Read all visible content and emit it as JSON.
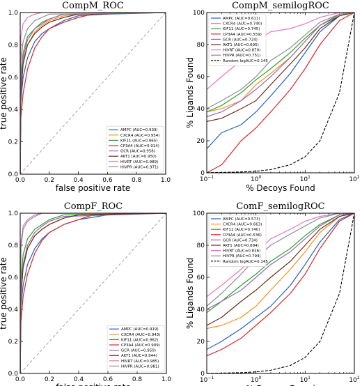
{
  "figure": {
    "colors": {
      "AMPC": "#1f5fbf",
      "CXCR4": "#ff8c1a",
      "KIF11": "#2ca02c",
      "CP3A4": "#d62728",
      "GCR": "#9467bd",
      "AKT1": "#6b2b12",
      "HIVRT": "#e377c2",
      "HIVPR": "#8c8c8c",
      "random": "#000000",
      "diag": "#999999"
    }
  },
  "chart_data": [
    {
      "id": "compm_roc",
      "type": "line",
      "title": "CompM_ROC",
      "xlabel": "false positive rate",
      "ylabel": "true positive rate",
      "xlim": [
        0,
        1
      ],
      "ylim": [
        0,
        1
      ],
      "xticks": [
        "0.0",
        "0.2",
        "0.4",
        "0.6",
        "0.8",
        "1.0"
      ],
      "yticks": [
        "0.0",
        "0.2",
        "0.4",
        "0.6",
        "0.8",
        "1.0"
      ],
      "legend_position": "lower-right",
      "diagonal": true,
      "series": [
        {
          "name": "AMPC (AUC=0.939)",
          "key": "AMPC",
          "x": [
            0,
            0.005,
            0.02,
            0.05,
            0.1,
            0.15,
            0.2,
            0.3,
            0.4,
            0.6,
            1
          ],
          "y": [
            0,
            0.45,
            0.6,
            0.72,
            0.82,
            0.87,
            0.9,
            0.95,
            0.98,
            0.99,
            1
          ]
        },
        {
          "name": "CXCR4 (AUC=0.954)",
          "key": "CXCR4",
          "x": [
            0,
            0.005,
            0.02,
            0.05,
            0.1,
            0.15,
            0.2,
            0.3,
            0.4,
            1
          ],
          "y": [
            0,
            0.55,
            0.7,
            0.8,
            0.88,
            0.92,
            0.95,
            0.98,
            0.99,
            1
          ]
        },
        {
          "name": "KIF11 (AUC=0.965)",
          "key": "KIF11",
          "x": [
            0,
            0.005,
            0.02,
            0.05,
            0.1,
            0.15,
            0.2,
            0.3,
            1
          ],
          "y": [
            0,
            0.6,
            0.75,
            0.85,
            0.9,
            0.94,
            0.96,
            0.99,
            1
          ]
        },
        {
          "name": "CP3A4 (AUC=0.914)",
          "key": "CP3A4",
          "x": [
            0,
            0.005,
            0.02,
            0.05,
            0.1,
            0.15,
            0.2,
            0.3,
            0.4,
            0.5,
            1
          ],
          "y": [
            0,
            0.35,
            0.5,
            0.65,
            0.78,
            0.85,
            0.9,
            0.94,
            0.97,
            0.99,
            1
          ]
        },
        {
          "name": "GCR (AUC=0.958)",
          "key": "GCR",
          "x": [
            0,
            0.005,
            0.02,
            0.05,
            0.1,
            0.15,
            0.2,
            0.3,
            1
          ],
          "y": [
            0,
            0.55,
            0.72,
            0.83,
            0.9,
            0.93,
            0.96,
            0.99,
            1
          ]
        },
        {
          "name": "AKT1 (AUC=0.950)",
          "key": "AKT1",
          "x": [
            0,
            0.005,
            0.02,
            0.05,
            0.1,
            0.15,
            0.2,
            0.3,
            0.4,
            1
          ],
          "y": [
            0,
            0.5,
            0.68,
            0.8,
            0.87,
            0.91,
            0.94,
            0.97,
            0.99,
            1
          ]
        },
        {
          "name": "HIVRT (AUC=0.989)",
          "key": "HIVRT",
          "x": [
            0,
            0.005,
            0.02,
            0.05,
            0.1,
            0.15,
            1
          ],
          "y": [
            0,
            0.85,
            0.93,
            0.97,
            0.99,
            1,
            1
          ]
        },
        {
          "name": "HIVPR (AUC=0.971)",
          "key": "HIVPR",
          "x": [
            0,
            0.005,
            0.02,
            0.05,
            0.1,
            0.15,
            0.2,
            1
          ],
          "y": [
            0,
            0.7,
            0.82,
            0.9,
            0.95,
            0.97,
            0.99,
            1
          ]
        }
      ]
    },
    {
      "id": "compm_semilog",
      "type": "line",
      "title": "CompM_semilogROC",
      "xlabel": "% Decoys Found",
      "ylabel": "% Ligands Found",
      "xscale": "log",
      "xlim": [
        0.1,
        100
      ],
      "ylim": [
        0,
        100
      ],
      "xticks": [
        {
          "v": 0.1,
          "base": "10",
          "exp": "−1"
        },
        {
          "v": 1,
          "base": "10",
          "exp": "0"
        },
        {
          "v": 10,
          "base": "10",
          "exp": "1"
        },
        {
          "v": 100,
          "base": "10",
          "exp": "2"
        }
      ],
      "yticks": [
        "0",
        "20",
        "40",
        "60",
        "80",
        "100"
      ],
      "legend_position": "upper-left",
      "random_curve": true,
      "series": [
        {
          "name": "AMPC (AUC=0.611)",
          "key": "AMPC",
          "x": [
            0.1,
            0.2,
            0.5,
            1,
            2,
            5,
            10,
            20,
            50,
            100
          ],
          "y": [
            15,
            25,
            30,
            38,
            48,
            62,
            75,
            88,
            98,
            100
          ]
        },
        {
          "name": "CXCR4 (AUC=0.740)",
          "key": "CXCR4",
          "x": [
            0.1,
            0.2,
            0.5,
            1,
            2,
            5,
            10,
            20,
            50,
            100
          ],
          "y": [
            38,
            40,
            45,
            55,
            62,
            72,
            82,
            92,
            99,
            100
          ]
        },
        {
          "name": "KIF11 (AUC=0.745)",
          "key": "KIF11",
          "x": [
            0.1,
            0.2,
            0.5,
            1,
            2,
            5,
            10,
            20,
            50,
            100
          ],
          "y": [
            38,
            42,
            50,
            58,
            65,
            75,
            84,
            92,
            98,
            100
          ]
        },
        {
          "name": "CP3A4 (AUC=0.559)",
          "key": "CP3A4",
          "x": [
            0.1,
            0.2,
            0.5,
            1,
            2,
            5,
            10,
            20,
            50,
            100
          ],
          "y": [
            0,
            5,
            20,
            28,
            38,
            52,
            65,
            80,
            95,
            100
          ]
        },
        {
          "name": "GCR (AUC=0.724)",
          "key": "GCR",
          "x": [
            0.1,
            0.2,
            0.5,
            1,
            2,
            5,
            10,
            20,
            50,
            100
          ],
          "y": [
            35,
            38,
            45,
            52,
            60,
            72,
            82,
            92,
            99,
            100
          ]
        },
        {
          "name": "AKT1 (AUC=0.695)",
          "key": "AKT1",
          "x": [
            0.1,
            0.2,
            0.5,
            1,
            2,
            5,
            10,
            20,
            50,
            100
          ],
          "y": [
            32,
            34,
            40,
            45,
            55,
            68,
            78,
            90,
            98,
            100
          ]
        },
        {
          "name": "HIVRT (AUC=0.870)",
          "key": "HIVRT",
          "x": [
            0.1,
            0.2,
            0.5,
            1,
            2,
            5,
            10,
            20,
            50,
            100
          ],
          "y": [
            52,
            60,
            70,
            82,
            88,
            90,
            93,
            97,
            100,
            100
          ]
        },
        {
          "name": "HIVPR (AUC=0.751)",
          "key": "HIVPR",
          "x": [
            0.1,
            0.2,
            0.5,
            1,
            2,
            5,
            10,
            20,
            50,
            100
          ],
          "y": [
            40,
            45,
            52,
            60,
            70,
            78,
            86,
            94,
            99,
            100
          ]
        },
        {
          "name": "Random logAUC=0.145",
          "key": "random",
          "dashed": true,
          "x": [
            0.1,
            0.2,
            0.5,
            1,
            2,
            5,
            10,
            20,
            50,
            100
          ],
          "y": [
            0.1,
            0.2,
            0.5,
            1,
            2,
            5,
            10,
            20,
            50,
            100
          ]
        }
      ]
    },
    {
      "id": "compf_roc",
      "type": "line",
      "title": "CompF_ROC",
      "xlabel": "false positive rate",
      "ylabel": "true positive rate",
      "xlim": [
        0,
        1
      ],
      "ylim": [
        0,
        1
      ],
      "xticks": [
        "0.0",
        "0.2",
        "0.4",
        "0.6",
        "0.8",
        "1.0"
      ],
      "yticks": [
        "0.0",
        "0.2",
        "0.4",
        "0.6",
        "0.8",
        "1.0"
      ],
      "legend_position": "lower-right",
      "diagonal": true,
      "series": [
        {
          "name": "AMPC (AUC=0.919)",
          "key": "AMPC",
          "x": [
            0,
            0.005,
            0.02,
            0.05,
            0.1,
            0.15,
            0.2,
            0.3,
            0.4,
            0.6,
            1
          ],
          "y": [
            0,
            0.42,
            0.55,
            0.68,
            0.78,
            0.84,
            0.88,
            0.93,
            0.96,
            0.99,
            1
          ]
        },
        {
          "name": "CXCR4 (AUC=0.943)",
          "key": "CXCR4",
          "x": [
            0,
            0.005,
            0.02,
            0.05,
            0.1,
            0.15,
            0.2,
            0.3,
            0.4,
            1
          ],
          "y": [
            0,
            0.52,
            0.68,
            0.78,
            0.86,
            0.9,
            0.93,
            0.97,
            0.99,
            1
          ]
        },
        {
          "name": "KIF11 (AUC=0.962)",
          "key": "KIF11",
          "x": [
            0,
            0.005,
            0.02,
            0.05,
            0.1,
            0.15,
            0.2,
            0.3,
            1
          ],
          "y": [
            0,
            0.58,
            0.74,
            0.84,
            0.9,
            0.93,
            0.96,
            0.99,
            1
          ]
        },
        {
          "name": "CP3A4 (AUC=0.909)",
          "key": "CP3A4",
          "x": [
            0,
            0.005,
            0.02,
            0.05,
            0.1,
            0.15,
            0.2,
            0.3,
            0.4,
            0.5,
            1
          ],
          "y": [
            0,
            0.32,
            0.48,
            0.62,
            0.75,
            0.83,
            0.88,
            0.93,
            0.96,
            0.99,
            1
          ]
        },
        {
          "name": "GCR (AUC=0.950)",
          "key": "GCR",
          "x": [
            0,
            0.005,
            0.02,
            0.05,
            0.1,
            0.15,
            0.2,
            0.3,
            1
          ],
          "y": [
            0,
            0.5,
            0.68,
            0.8,
            0.88,
            0.92,
            0.95,
            0.98,
            1
          ]
        },
        {
          "name": "AKT1 (AUC=0.944)",
          "key": "AKT1",
          "x": [
            0,
            0.005,
            0.02,
            0.05,
            0.1,
            0.15,
            0.2,
            0.3,
            0.4,
            1
          ],
          "y": [
            0,
            0.48,
            0.66,
            0.78,
            0.86,
            0.9,
            0.93,
            0.97,
            0.99,
            1
          ]
        },
        {
          "name": "HIVRT (AUC=0.985)",
          "key": "HIVRT",
          "x": [
            0,
            0.005,
            0.02,
            0.05,
            0.1,
            0.15,
            1
          ],
          "y": [
            0,
            0.82,
            0.92,
            0.96,
            0.99,
            1,
            1
          ]
        },
        {
          "name": "HIVPR (AUC=0.981)",
          "key": "HIVPR",
          "x": [
            0,
            0.005,
            0.02,
            0.05,
            0.1,
            0.15,
            1
          ],
          "y": [
            0,
            0.78,
            0.9,
            0.95,
            0.98,
            1,
            1
          ]
        }
      ]
    },
    {
      "id": "comf_semilog",
      "type": "line",
      "title": "ComF_semilogROC",
      "xlabel": "% Decoys Found",
      "ylabel": "% Ligands Found",
      "xscale": "log",
      "xlim": [
        0.1,
        100
      ],
      "ylim": [
        0,
        100
      ],
      "xticks": [
        {
          "v": 0.1,
          "base": "10",
          "exp": "−1"
        },
        {
          "v": 1,
          "base": "10",
          "exp": "0"
        },
        {
          "v": 10,
          "base": "10",
          "exp": "1"
        },
        {
          "v": 100,
          "base": "10",
          "exp": "2"
        }
      ],
      "yticks": [
        "0",
        "20",
        "40",
        "60",
        "80",
        "100"
      ],
      "legend_position": "upper-left",
      "random_curve": true,
      "series": [
        {
          "name": "AMPC (AUC=0.573)",
          "key": "AMPC",
          "x": [
            0.1,
            0.2,
            0.5,
            1,
            2,
            5,
            10,
            20,
            50,
            100
          ],
          "y": [
            15,
            20,
            28,
            35,
            42,
            55,
            68,
            82,
            96,
            100
          ]
        },
        {
          "name": "CXCR4 (AUC=0.663)",
          "key": "CXCR4",
          "x": [
            0.1,
            0.2,
            0.5,
            1,
            2,
            5,
            10,
            20,
            50,
            100
          ],
          "y": [
            28,
            30,
            35,
            42,
            52,
            65,
            76,
            88,
            98,
            100
          ]
        },
        {
          "name": "KIF11 (AUC=0.740)",
          "key": "KIF11",
          "x": [
            0.1,
            0.2,
            0.5,
            1,
            2,
            5,
            10,
            20,
            50,
            100
          ],
          "y": [
            38,
            45,
            55,
            62,
            70,
            78,
            86,
            93,
            99,
            100
          ]
        },
        {
          "name": "CP3A4 (AUC=0.536)",
          "key": "CP3A4",
          "x": [
            0.1,
            0.2,
            0.5,
            1,
            2,
            5,
            10,
            20,
            50,
            100
          ],
          "y": [
            11,
            15,
            22,
            30,
            38,
            50,
            62,
            78,
            95,
            100
          ]
        },
        {
          "name": "GCR (AUC=0.734)",
          "key": "GCR",
          "x": [
            0.1,
            0.2,
            0.5,
            1,
            2,
            5,
            10,
            20,
            50,
            100
          ],
          "y": [
            40,
            45,
            52,
            60,
            68,
            76,
            84,
            92,
            99,
            100
          ]
        },
        {
          "name": "AKT1 (AUC=0.694)",
          "key": "AKT1",
          "x": [
            0.1,
            0.2,
            0.5,
            1,
            2,
            5,
            10,
            20,
            50,
            100
          ],
          "y": [
            30,
            35,
            45,
            52,
            60,
            70,
            80,
            90,
            98,
            100
          ]
        },
        {
          "name": "HIVRT (AUC=0.836)",
          "key": "HIVRT",
          "x": [
            0.1,
            0.2,
            0.5,
            1,
            2,
            5,
            10,
            20,
            50,
            100
          ],
          "y": [
            48,
            55,
            65,
            75,
            84,
            90,
            95,
            98,
            100,
            100
          ]
        },
        {
          "name": "HIVPR (AUC=0.794)",
          "key": "HIVPR",
          "x": [
            0.1,
            0.2,
            0.5,
            1,
            2,
            5,
            10,
            20,
            50,
            100
          ],
          "y": [
            42,
            50,
            62,
            72,
            80,
            87,
            92,
            97,
            100,
            100
          ]
        },
        {
          "name": "Random logAUC=0.145",
          "key": "random",
          "dashed": true,
          "x": [
            0.1,
            0.2,
            0.5,
            1,
            2,
            5,
            10,
            20,
            50,
            100
          ],
          "y": [
            0.1,
            0.2,
            0.5,
            1,
            2,
            5,
            10,
            20,
            50,
            100
          ]
        }
      ]
    }
  ]
}
